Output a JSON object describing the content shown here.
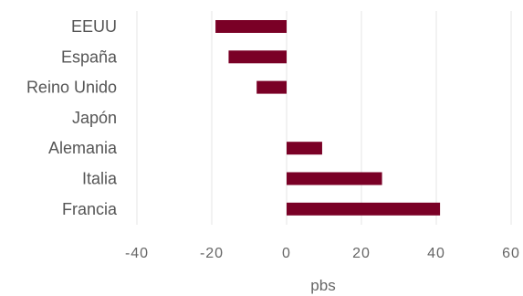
{
  "chart_data": {
    "type": "bar",
    "orientation": "horizontal",
    "categories": [
      "EEUU",
      "España",
      "Reino Unido",
      "Japón",
      "Alemania",
      "Italia",
      "Francia"
    ],
    "values": [
      -19,
      -15.5,
      -8,
      0,
      9.5,
      25.5,
      41
    ],
    "xlabel": "pbs",
    "ylabel": "",
    "title": "",
    "xlim": [
      -40,
      60
    ],
    "x_ticks": [
      -40,
      -20,
      0,
      20,
      40,
      60
    ],
    "grid": "vertical",
    "legend": "none",
    "bar_color": "#7a0026",
    "gridline_color": "#e4e4e4"
  }
}
